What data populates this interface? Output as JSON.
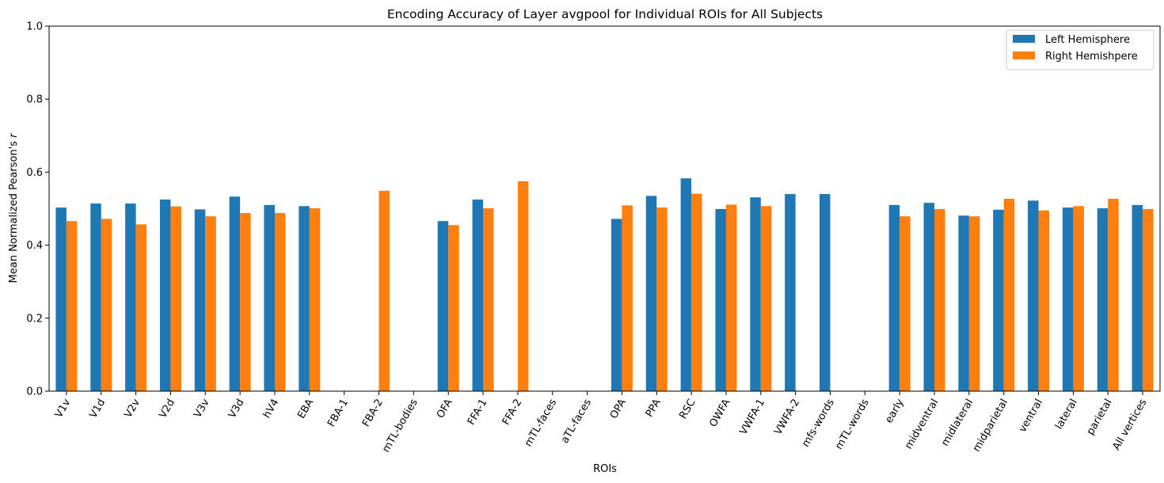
{
  "chart_data": {
    "type": "bar",
    "title": "Encoding Accuracy of Layer avgpool for Individual ROIs for All Subjects",
    "xlabel": "ROIs",
    "ylabel_prefix": "Mean Normalized Pearson's ",
    "ylabel_var": "r",
    "ylim": [
      0,
      1.0
    ],
    "yticks": [
      "0.0",
      "0.2",
      "0.4",
      "0.6",
      "0.8",
      "1.0"
    ],
    "legend_position": "top-right",
    "categories": [
      "V1v",
      "V1d",
      "V2v",
      "V2d",
      "V3v",
      "V3d",
      "hV4",
      "EBA",
      "FBA-1",
      "FBA-2",
      "mTL-bodies",
      "OFA",
      "FFA-1",
      "FFA-2",
      "mTL-faces",
      "aTL-faces",
      "OPA",
      "PPA",
      "RSC",
      "OWFA",
      "VWFA-1",
      "VWFA-2",
      "mfs-words",
      "mTL-words",
      "early",
      "midventral",
      "midlateral",
      "midparietal",
      "ventral",
      "lateral",
      "parietal",
      "All vertices"
    ],
    "series": [
      {
        "name": "Left Hemisphere",
        "color": "#1f77b4",
        "values": [
          0.503,
          0.514,
          0.514,
          0.525,
          0.498,
          0.533,
          0.51,
          0.507,
          null,
          null,
          null,
          0.466,
          0.525,
          null,
          null,
          null,
          0.472,
          0.535,
          0.583,
          0.499,
          0.531,
          0.54,
          0.54,
          null,
          0.51,
          0.516,
          0.481,
          0.497,
          0.522,
          0.503,
          0.501,
          0.51
        ]
      },
      {
        "name": "Right Hemishpere",
        "color": "#ff7f0e",
        "values": [
          0.466,
          0.472,
          0.457,
          0.506,
          0.479,
          0.488,
          0.488,
          0.501,
          null,
          0.549,
          null,
          0.455,
          0.501,
          0.575,
          null,
          null,
          0.509,
          0.503,
          0.541,
          0.511,
          0.507,
          null,
          null,
          null,
          0.479,
          0.499,
          0.479,
          0.527,
          0.495,
          0.507,
          0.527,
          0.499
        ]
      }
    ]
  }
}
